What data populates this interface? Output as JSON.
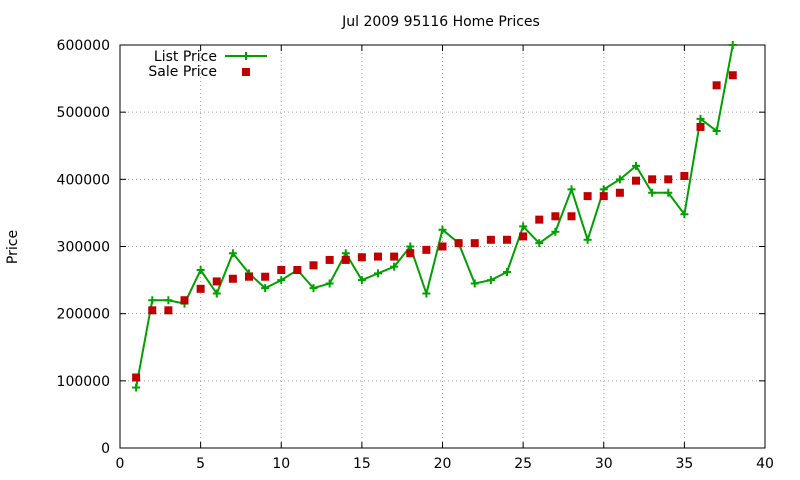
{
  "chart_data": {
    "type": "line",
    "title": "Jul 2009 95116 Home Prices",
    "xlabel": "",
    "ylabel": "Price",
    "xlim": [
      0,
      40
    ],
    "ylim": [
      0,
      600000
    ],
    "x_ticks": [
      0,
      5,
      10,
      15,
      20,
      25,
      30,
      35,
      40
    ],
    "y_ticks": [
      0,
      100000,
      200000,
      300000,
      400000,
      500000,
      600000
    ],
    "grid": true,
    "legend_position": "top-left",
    "series": [
      {
        "name": "List Price",
        "style": "line-with-plus-markers",
        "color": "#00a000",
        "x": [
          1,
          2,
          3,
          4,
          5,
          6,
          7,
          8,
          9,
          10,
          11,
          12,
          13,
          14,
          15,
          16,
          17,
          18,
          19,
          20,
          21,
          22,
          23,
          24,
          25,
          26,
          27,
          28,
          29,
          30,
          31,
          32,
          33,
          34,
          35,
          36,
          37,
          38
        ],
        "y": [
          90000,
          220000,
          220000,
          215000,
          265000,
          230000,
          290000,
          260000,
          238000,
          250000,
          265000,
          238000,
          245000,
          290000,
          250000,
          260000,
          270000,
          300000,
          230000,
          325000,
          305000,
          245000,
          250000,
          262000,
          330000,
          305000,
          322000,
          385000,
          310000,
          385000,
          400000,
          420000,
          380000,
          380000,
          348000,
          490000,
          472000,
          600000
        ]
      },
      {
        "name": "Sale Price",
        "style": "square-markers",
        "color": "#c00000",
        "x": [
          1,
          2,
          3,
          4,
          5,
          6,
          7,
          8,
          9,
          10,
          11,
          12,
          13,
          14,
          15,
          16,
          17,
          18,
          19,
          20,
          21,
          22,
          23,
          24,
          25,
          26,
          27,
          28,
          29,
          30,
          31,
          32,
          33,
          34,
          35,
          36,
          37,
          38
        ],
        "y": [
          105000,
          205000,
          205000,
          220000,
          237000,
          248000,
          252000,
          255000,
          255000,
          265000,
          265000,
          272000,
          280000,
          280000,
          284000,
          285000,
          285000,
          290000,
          295000,
          300000,
          305000,
          305000,
          310000,
          310000,
          315000,
          340000,
          345000,
          345000,
          375000,
          375000,
          380000,
          398000,
          400000,
          400000,
          405000,
          478000,
          540000,
          555000
        ]
      }
    ]
  }
}
